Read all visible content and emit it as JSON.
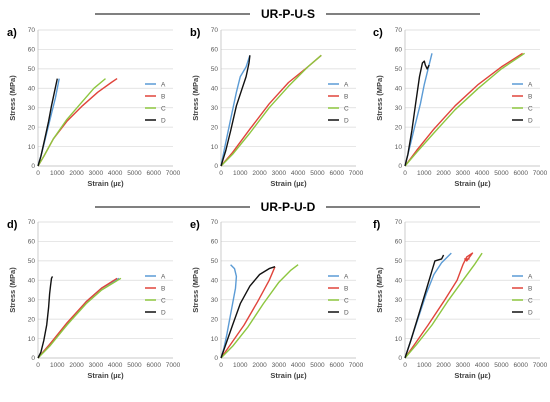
{
  "groups": [
    {
      "title": "UR-P-U-S"
    },
    {
      "title": "UR-P-U-D"
    }
  ],
  "chart_data": [
    {
      "type": "line",
      "panel_label": "a)",
      "xlabel": "Strain (µε)",
      "ylabel": "Stress (MPa)",
      "xlim": [
        0,
        7000
      ],
      "ylim": [
        0,
        70
      ],
      "xticks": [
        0,
        1000,
        2000,
        3000,
        4000,
        5000,
        6000,
        7000
      ],
      "yticks": [
        0,
        10,
        20,
        30,
        40,
        50,
        60,
        70
      ],
      "grid": true,
      "legend_position": "right",
      "series": [
        {
          "name": "A",
          "color": "#5b9bd5",
          "points": [
            [
              0,
              0
            ],
            [
              200,
              7
            ],
            [
              450,
              17
            ],
            [
              700,
              27
            ],
            [
              900,
              35
            ],
            [
              1100,
              45
            ]
          ]
        },
        {
          "name": "B",
          "color": "#e0443b",
          "points": [
            [
              0,
              0
            ],
            [
              300,
              5
            ],
            [
              800,
              14
            ],
            [
              1500,
              23
            ],
            [
              2300,
              31
            ],
            [
              3100,
              38
            ],
            [
              3800,
              43
            ],
            [
              4100,
              45
            ]
          ]
        },
        {
          "name": "C",
          "color": "#8dc63f",
          "points": [
            [
              0,
              0
            ],
            [
              300,
              5
            ],
            [
              800,
              14
            ],
            [
              1500,
              24
            ],
            [
              2200,
              32
            ],
            [
              2900,
              40
            ],
            [
              3500,
              45
            ]
          ]
        },
        {
          "name": "D",
          "color": "#111111",
          "points": [
            [
              0,
              0
            ],
            [
              150,
              5
            ],
            [
              350,
              14
            ],
            [
              550,
              23
            ],
            [
              700,
              31
            ],
            [
              850,
              38
            ],
            [
              1000,
              45
            ]
          ]
        }
      ]
    },
    {
      "type": "line",
      "panel_label": "b)",
      "xlabel": "Strain (µε)",
      "ylabel": "Stress (MPa)",
      "xlim": [
        0,
        7000
      ],
      "ylim": [
        0,
        70
      ],
      "xticks": [
        0,
        1000,
        2000,
        3000,
        4000,
        5000,
        6000,
        7000
      ],
      "yticks": [
        0,
        10,
        20,
        30,
        40,
        50,
        60,
        70
      ],
      "grid": true,
      "legend_position": "right",
      "series": [
        {
          "name": "A",
          "color": "#5b9bd5",
          "points": [
            [
              0,
              0
            ],
            [
              200,
              10
            ],
            [
              500,
              24
            ],
            [
              800,
              38
            ],
            [
              1000,
              46
            ],
            [
              1300,
              51
            ],
            [
              1500,
              57
            ]
          ]
        },
        {
          "name": "B",
          "color": "#e0443b",
          "points": [
            [
              0,
              0
            ],
            [
              600,
              7
            ],
            [
              1500,
              19
            ],
            [
              2500,
              32
            ],
            [
              3500,
              43
            ],
            [
              4500,
              51
            ],
            [
              5200,
              57
            ]
          ]
        },
        {
          "name": "C",
          "color": "#8dc63f",
          "points": [
            [
              0,
              0
            ],
            [
              600,
              6
            ],
            [
              1500,
              17
            ],
            [
              2500,
              30
            ],
            [
              3500,
              41
            ],
            [
              4500,
              51
            ],
            [
              5200,
              57
            ]
          ]
        },
        {
          "name": "D",
          "color": "#111111",
          "points": [
            [
              0,
              0
            ],
            [
              250,
              8
            ],
            [
              500,
              18
            ],
            [
              800,
              31
            ],
            [
              1100,
              40
            ],
            [
              1300,
              46
            ],
            [
              1450,
              53
            ],
            [
              1500,
              57
            ]
          ]
        }
      ]
    },
    {
      "type": "line",
      "panel_label": "c)",
      "xlabel": "Strain (µε)",
      "ylabel": "Stress (MPa)",
      "xlim": [
        0,
        7000
      ],
      "ylim": [
        0,
        70
      ],
      "xticks": [
        0,
        1000,
        2000,
        3000,
        4000,
        5000,
        6000,
        7000
      ],
      "yticks": [
        0,
        10,
        20,
        30,
        40,
        50,
        60,
        70
      ],
      "grid": true,
      "legend_position": "right",
      "series": [
        {
          "name": "A",
          "color": "#5b9bd5",
          "points": [
            [
              0,
              0
            ],
            [
              200,
              8
            ],
            [
              500,
              20
            ],
            [
              800,
              32
            ],
            [
              1000,
              42
            ],
            [
              1200,
              50
            ],
            [
              1400,
              58
            ]
          ]
        },
        {
          "name": "B",
          "color": "#e0443b",
          "points": [
            [
              0,
              0
            ],
            [
              600,
              8
            ],
            [
              1500,
              19
            ],
            [
              2600,
              31
            ],
            [
              3800,
              42
            ],
            [
              5000,
              51
            ],
            [
              6100,
              58
            ]
          ]
        },
        {
          "name": "C",
          "color": "#8dc63f",
          "points": [
            [
              0,
              0
            ],
            [
              600,
              7
            ],
            [
              1500,
              17
            ],
            [
              2600,
              29
            ],
            [
              3800,
              40
            ],
            [
              5000,
              50
            ],
            [
              6200,
              58
            ]
          ]
        },
        {
          "name": "D",
          "color": "#111111",
          "points": [
            [
              0,
              0
            ],
            [
              150,
              6
            ],
            [
              350,
              18
            ],
            [
              550,
              32
            ],
            [
              750,
              46
            ],
            [
              900,
              53
            ],
            [
              1000,
              54
            ],
            [
              1050,
              52
            ],
            [
              1150,
              50
            ],
            [
              1250,
              52
            ]
          ]
        }
      ]
    },
    {
      "type": "line",
      "panel_label": "d)",
      "xlabel": "Strain (µε)",
      "ylabel": "Stress (MPa)",
      "xlim": [
        0,
        7000
      ],
      "ylim": [
        0,
        70
      ],
      "xticks": [
        0,
        1000,
        2000,
        3000,
        4000,
        5000,
        6000,
        7000
      ],
      "yticks": [
        0,
        10,
        20,
        30,
        40,
        50,
        60,
        70
      ],
      "grid": true,
      "legend_position": "right",
      "series": [
        {
          "name": "A",
          "color": "#5b9bd5",
          "points": [
            [
              0,
              0
            ],
            [
              600,
              7
            ],
            [
              1500,
              17
            ],
            [
              2500,
              29
            ],
            [
              3300,
              36
            ],
            [
              4200,
              41
            ]
          ]
        },
        {
          "name": "B",
          "color": "#e0443b",
          "points": [
            [
              0,
              0
            ],
            [
              600,
              7
            ],
            [
              1500,
              18
            ],
            [
              2500,
              29
            ],
            [
              3300,
              36
            ],
            [
              4100,
              41
            ]
          ]
        },
        {
          "name": "C",
          "color": "#8dc63f",
          "points": [
            [
              0,
              0
            ],
            [
              600,
              6
            ],
            [
              1500,
              17
            ],
            [
              2500,
              28
            ],
            [
              3300,
              35
            ],
            [
              4300,
              41
            ]
          ]
        },
        {
          "name": "D",
          "color": "#111111",
          "points": [
            [
              0,
              0
            ],
            [
              150,
              3
            ],
            [
              300,
              9
            ],
            [
              450,
              17
            ],
            [
              550,
              26
            ],
            [
              600,
              33
            ],
            [
              650,
              37
            ],
            [
              700,
              41
            ],
            [
              750,
              42
            ]
          ]
        }
      ]
    },
    {
      "type": "line",
      "panel_label": "e)",
      "xlabel": "Strain (µε)",
      "ylabel": "Stress (MPa)",
      "xlim": [
        0,
        7000
      ],
      "ylim": [
        0,
        70
      ],
      "xticks": [
        0,
        1000,
        2000,
        3000,
        4000,
        5000,
        6000,
        7000
      ],
      "yticks": [
        0,
        10,
        20,
        30,
        40,
        50,
        60,
        70
      ],
      "grid": true,
      "legend_position": "right",
      "series": [
        {
          "name": "A",
          "color": "#5b9bd5",
          "points": [
            [
              0,
              0
            ],
            [
              150,
              5
            ],
            [
              300,
              12
            ],
            [
              450,
              20
            ],
            [
              600,
              28
            ],
            [
              750,
              36
            ],
            [
              800,
              42
            ],
            [
              700,
              46
            ],
            [
              500,
              48
            ]
          ]
        },
        {
          "name": "B",
          "color": "#e0443b",
          "points": [
            [
              0,
              0
            ],
            [
              500,
              7
            ],
            [
              1200,
              17
            ],
            [
              1900,
              29
            ],
            [
              2500,
              40
            ],
            [
              2800,
              47
            ]
          ]
        },
        {
          "name": "C",
          "color": "#8dc63f",
          "points": [
            [
              0,
              0
            ],
            [
              600,
              6
            ],
            [
              1400,
              16
            ],
            [
              2200,
              28
            ],
            [
              3000,
              39
            ],
            [
              3600,
              45
            ],
            [
              4000,
              48
            ]
          ]
        },
        {
          "name": "D",
          "color": "#111111",
          "points": [
            [
              0,
              0
            ],
            [
              250,
              7
            ],
            [
              600,
              17
            ],
            [
              1000,
              28
            ],
            [
              1500,
              37
            ],
            [
              2000,
              43
            ],
            [
              2500,
              46
            ],
            [
              2800,
              47
            ]
          ]
        }
      ]
    },
    {
      "type": "line",
      "panel_label": "f)",
      "xlabel": "Strain (µε)",
      "ylabel": "Stress (MPa)",
      "xlim": [
        0,
        7000
      ],
      "ylim": [
        0,
        70
      ],
      "xticks": [
        0,
        1000,
        2000,
        3000,
        4000,
        5000,
        6000,
        7000
      ],
      "yticks": [
        0,
        10,
        20,
        30,
        40,
        50,
        60,
        70
      ],
      "grid": true,
      "legend_position": "right",
      "series": [
        {
          "name": "A",
          "color": "#5b9bd5",
          "points": [
            [
              0,
              0
            ],
            [
              300,
              9
            ],
            [
              700,
              21
            ],
            [
              1100,
              33
            ],
            [
              1500,
              43
            ],
            [
              1900,
              49
            ],
            [
              2400,
              54
            ]
          ]
        },
        {
          "name": "B",
          "color": "#e0443b",
          "points": [
            [
              0,
              0
            ],
            [
              500,
              7
            ],
            [
              1200,
              17
            ],
            [
              2000,
              29
            ],
            [
              2700,
              40
            ],
            [
              3000,
              48
            ],
            [
              3200,
              52
            ],
            [
              3500,
              54
            ],
            [
              3200,
              50
            ],
            [
              3100,
              51
            ],
            [
              3350,
              51
            ]
          ]
        },
        {
          "name": "C",
          "color": "#8dc63f",
          "points": [
            [
              0,
              0
            ],
            [
              600,
              7
            ],
            [
              1400,
              17
            ],
            [
              2200,
              29
            ],
            [
              3000,
              40
            ],
            [
              3600,
              48
            ],
            [
              4000,
              54
            ]
          ]
        },
        {
          "name": "D",
          "color": "#111111",
          "points": [
            [
              0,
              0
            ],
            [
              300,
              9
            ],
            [
              700,
              22
            ],
            [
              1100,
              35
            ],
            [
              1400,
              45
            ],
            [
              1550,
              50
            ],
            [
              1900,
              51
            ],
            [
              2000,
              53
            ]
          ]
        }
      ]
    }
  ]
}
